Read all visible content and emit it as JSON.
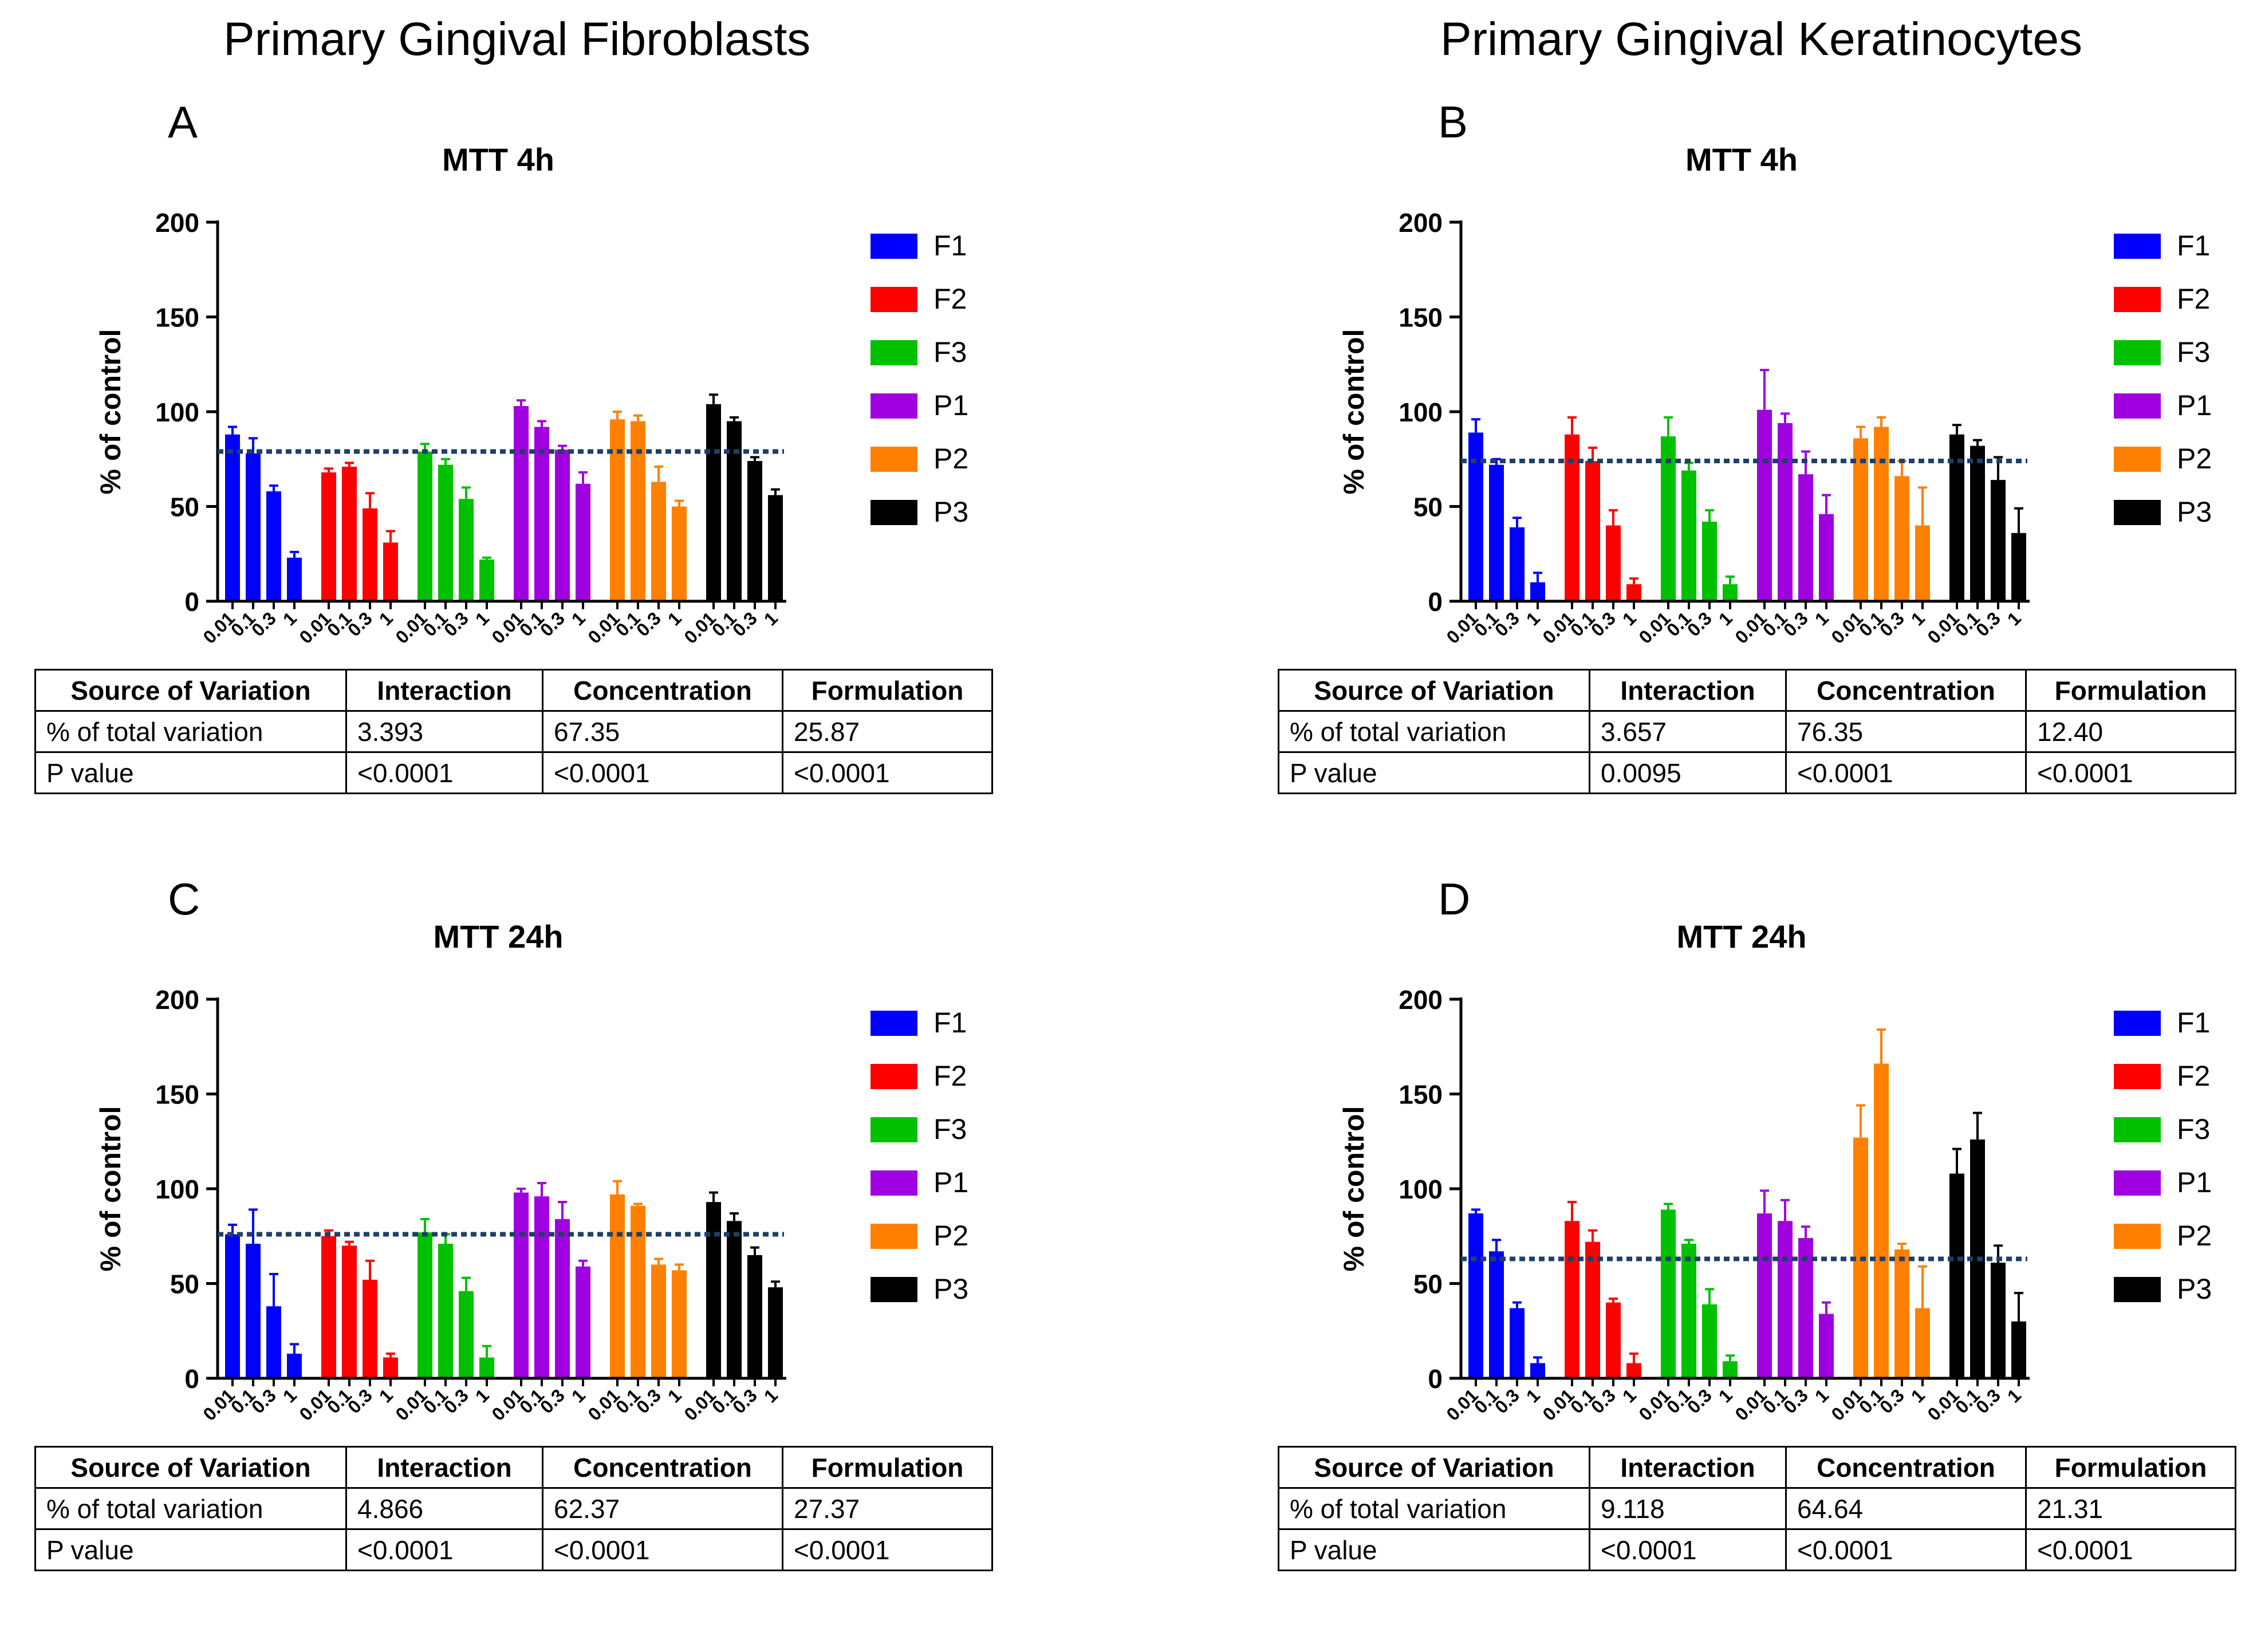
{
  "column_titles": [
    "Primary Gingival Fibroblasts",
    "Primary Gingival Keratinocytes"
  ],
  "chart_data": [
    {
      "panel": "A",
      "type": "bar",
      "title": "MTT 4h",
      "ylabel": "% of control",
      "ylim": [
        0,
        200
      ],
      "yticks": [
        "0",
        "50",
        "100",
        "150",
        "200"
      ],
      "categories": [
        "0.01",
        "0.1",
        "0.3",
        "1"
      ],
      "reference_line": 79,
      "series": [
        {
          "name": "F1",
          "color": "#0000ff",
          "values": [
            88,
            78,
            58,
            23
          ],
          "errors": [
            4,
            8,
            3,
            3
          ]
        },
        {
          "name": "F2",
          "color": "#ff0000",
          "values": [
            68,
            71,
            49,
            31
          ],
          "errors": [
            2,
            2,
            8,
            6
          ]
        },
        {
          "name": "F3",
          "color": "#00c000",
          "values": [
            79,
            72,
            54,
            22
          ],
          "errors": [
            4,
            3,
            6,
            1
          ]
        },
        {
          "name": "P1",
          "color": "#a000e0",
          "values": [
            103,
            92,
            80,
            62
          ],
          "errors": [
            3,
            3,
            2,
            6
          ]
        },
        {
          "name": "P2",
          "color": "#ff8000",
          "values": [
            96,
            95,
            63,
            50
          ],
          "errors": [
            4,
            3,
            8,
            3
          ]
        },
        {
          "name": "P3",
          "color": "#000000",
          "values": [
            104,
            95,
            74,
            56
          ],
          "errors": [
            5,
            2,
            2,
            3
          ]
        }
      ],
      "table": {
        "header": [
          "Source of Variation",
          "Interaction",
          "Concentration",
          "Formulation"
        ],
        "rows": [
          [
            "% of total variation",
            "3.393",
            "67.35",
            "25.87"
          ],
          [
            "P value",
            "<0.0001",
            "<0.0001",
            "<0.0001"
          ]
        ]
      }
    },
    {
      "panel": "B",
      "type": "bar",
      "title": "MTT 4h",
      "ylabel": "% of control",
      "ylim": [
        0,
        200
      ],
      "yticks": [
        "0",
        "50",
        "100",
        "150",
        "200"
      ],
      "categories": [
        "0.01",
        "0.1",
        "0.3",
        "1"
      ],
      "reference_line": 74,
      "series": [
        {
          "name": "F1",
          "color": "#0000ff",
          "values": [
            89,
            72,
            39,
            10
          ],
          "errors": [
            7,
            3,
            5,
            5
          ]
        },
        {
          "name": "F2",
          "color": "#ff0000",
          "values": [
            88,
            74,
            40,
            9
          ],
          "errors": [
            9,
            7,
            8,
            3
          ]
        },
        {
          "name": "F3",
          "color": "#00c000",
          "values": [
            87,
            69,
            42,
            9
          ],
          "errors": [
            10,
            4,
            6,
            4
          ]
        },
        {
          "name": "P1",
          "color": "#a000e0",
          "values": [
            101,
            94,
            67,
            46
          ],
          "errors": [
            21,
            5,
            12,
            10
          ]
        },
        {
          "name": "P2",
          "color": "#ff8000",
          "values": [
            86,
            92,
            66,
            40
          ],
          "errors": [
            6,
            5,
            8,
            20
          ]
        },
        {
          "name": "P3",
          "color": "#000000",
          "values": [
            88,
            82,
            64,
            36
          ],
          "errors": [
            5,
            3,
            12,
            13
          ]
        }
      ],
      "table": {
        "header": [
          "Source of Variation",
          "Interaction",
          "Concentration",
          "Formulation"
        ],
        "rows": [
          [
            "% of total variation",
            "3.657",
            "76.35",
            "12.40"
          ],
          [
            "P value",
            "0.0095",
            "<0.0001",
            "<0.0001"
          ]
        ]
      }
    },
    {
      "panel": "C",
      "type": "bar",
      "title": "MTT 24h",
      "ylabel": "% of control",
      "ylim": [
        0,
        200
      ],
      "yticks": [
        "0",
        "50",
        "100",
        "150",
        "200"
      ],
      "categories": [
        "0.01",
        "0.1",
        "0.3",
        "1"
      ],
      "reference_line": 76,
      "series": [
        {
          "name": "F1",
          "color": "#0000ff",
          "values": [
            76,
            71,
            38,
            13
          ],
          "errors": [
            5,
            18,
            17,
            5
          ]
        },
        {
          "name": "F2",
          "color": "#ff0000",
          "values": [
            75,
            70,
            52,
            11
          ],
          "errors": [
            3,
            2,
            10,
            2
          ]
        },
        {
          "name": "F3",
          "color": "#00c000",
          "values": [
            77,
            71,
            46,
            11
          ],
          "errors": [
            7,
            5,
            7,
            6
          ]
        },
        {
          "name": "P1",
          "color": "#a000e0",
          "values": [
            98,
            96,
            84,
            59
          ],
          "errors": [
            2,
            7,
            9,
            3
          ]
        },
        {
          "name": "P2",
          "color": "#ff8000",
          "values": [
            97,
            91,
            60,
            57
          ],
          "errors": [
            7,
            1,
            3,
            3
          ]
        },
        {
          "name": "P3",
          "color": "#000000",
          "values": [
            93,
            83,
            65,
            48
          ],
          "errors": [
            5,
            4,
            4,
            3
          ]
        }
      ],
      "table": {
        "header": [
          "Source of Variation",
          "Interaction",
          "Concentration",
          "Formulation"
        ],
        "rows": [
          [
            "% of total variation",
            "4.866",
            "62.37",
            "27.37"
          ],
          [
            "P value",
            "<0.0001",
            "<0.0001",
            "<0.0001"
          ]
        ]
      }
    },
    {
      "panel": "D",
      "type": "bar",
      "title": "MTT 24h",
      "ylabel": "% of control",
      "ylim": [
        0,
        200
      ],
      "yticks": [
        "0",
        "50",
        "100",
        "150",
        "200"
      ],
      "categories": [
        "0.01",
        "0.1",
        "0.3",
        "1"
      ],
      "reference_line": 63,
      "series": [
        {
          "name": "F1",
          "color": "#0000ff",
          "values": [
            87,
            67,
            37,
            8
          ],
          "errors": [
            2,
            6,
            3,
            3
          ]
        },
        {
          "name": "F2",
          "color": "#ff0000",
          "values": [
            83,
            72,
            40,
            8
          ],
          "errors": [
            10,
            6,
            2,
            5
          ]
        },
        {
          "name": "F3",
          "color": "#00c000",
          "values": [
            89,
            71,
            39,
            9
          ],
          "errors": [
            3,
            2,
            8,
            3
          ]
        },
        {
          "name": "P1",
          "color": "#a000e0",
          "values": [
            87,
            83,
            74,
            34
          ],
          "errors": [
            12,
            11,
            6,
            6
          ]
        },
        {
          "name": "P2",
          "color": "#ff8000",
          "values": [
            127,
            166,
            68,
            37
          ],
          "errors": [
            17,
            18,
            3,
            22
          ]
        },
        {
          "name": "P3",
          "color": "#000000",
          "values": [
            108,
            126,
            61,
            30
          ],
          "errors": [
            13,
            14,
            9,
            15
          ]
        }
      ],
      "table": {
        "header": [
          "Source of Variation",
          "Interaction",
          "Concentration",
          "Formulation"
        ],
        "rows": [
          [
            "% of total variation",
            "9.118",
            "64.64",
            "21.31"
          ],
          [
            "P value",
            "<0.0001",
            "<0.0001",
            "<0.0001"
          ]
        ]
      }
    }
  ]
}
